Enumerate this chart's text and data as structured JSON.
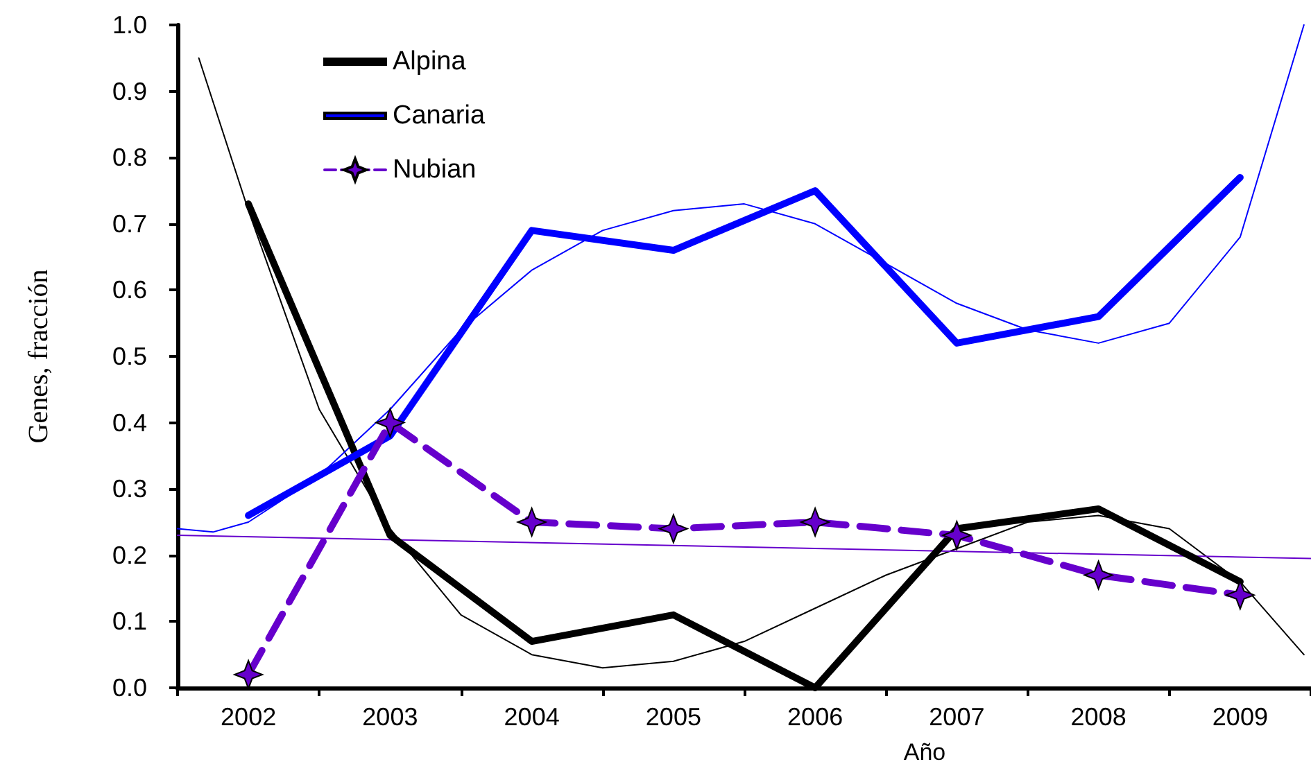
{
  "chart_data": {
    "type": "line",
    "xlabel": "Año",
    "ylabel": "Genes, fracción",
    "xlim": [
      2001.5,
      2009.5
    ],
    "xticks": [
      {
        "value": 2001.5,
        "label": null
      },
      {
        "value": 2002,
        "label": "2002"
      },
      {
        "value": 2002.5,
        "label": null
      },
      {
        "value": 2003,
        "label": "2003"
      },
      {
        "value": 2003.5,
        "label": null
      },
      {
        "value": 2004,
        "label": "2004"
      },
      {
        "value": 2004.5,
        "label": null
      },
      {
        "value": 2005,
        "label": "2005"
      },
      {
        "value": 2005.5,
        "label": null
      },
      {
        "value": 2006,
        "label": "2006"
      },
      {
        "value": 2006.5,
        "label": null
      },
      {
        "value": 2007,
        "label": "2007"
      },
      {
        "value": 2007.5,
        "label": null
      },
      {
        "value": 2008,
        "label": "2008"
      },
      {
        "value": 2008.5,
        "label": null
      },
      {
        "value": 2009,
        "label": "2009"
      },
      {
        "value": 2009.5,
        "label": null
      }
    ],
    "ylim": [
      0,
      1
    ],
    "yticks": [
      {
        "value": 0,
        "label": "0.0"
      },
      0.1,
      0.2,
      0.3,
      0.4,
      0.5,
      0.6,
      0.7,
      0.8,
      0.9,
      {
        "value": 1,
        "label": "1.0"
      }
    ],
    "grid": false,
    "legend": "top left",
    "series": [
      {
        "name": "Alpina",
        "color": "#000000",
        "x": [
          2002,
          2003,
          2004,
          2005,
          2006,
          2007,
          2008,
          2009
        ],
        "values": [
          0.73,
          0.23,
          0.07,
          0.11,
          0.0,
          0.24,
          0.27,
          0.16
        ],
        "marker": "none",
        "line_style": "solid"
      },
      {
        "name": "Canaria",
        "color": "#0000ff",
        "x": [
          2002,
          2003,
          2004,
          2005,
          2006,
          2007,
          2008,
          2009
        ],
        "values": [
          0.26,
          0.38,
          0.69,
          0.66,
          0.75,
          0.52,
          0.56,
          0.77
        ],
        "marker": "none",
        "line_style": "solid"
      },
      {
        "name": "Nubian",
        "color": "#6600cc",
        "x": [
          2002,
          2003,
          2004,
          2005,
          2006,
          2007,
          2008,
          2009
        ],
        "values": [
          0.02,
          0.4,
          0.25,
          0.24,
          0.25,
          0.23,
          0.17,
          0.14
        ],
        "marker": "star",
        "line_style": "dashed"
      },
      {
        "color": "#000000",
        "x": [
          2001.65,
          2002,
          2002.5,
          2003,
          2003.5,
          2004,
          2004.5,
          2005,
          2005.5,
          2006,
          2006.5,
          2007,
          2007.5,
          2008,
          2008.5,
          2009,
          2009.45
        ],
        "values": [
          0.95,
          0.72,
          0.42,
          0.24,
          0.11,
          0.05,
          0.03,
          0.04,
          0.07,
          0.12,
          0.17,
          0.21,
          0.25,
          0.26,
          0.24,
          0.16,
          0.05
        ],
        "marker": "none",
        "line_style": "solid"
      },
      {
        "color": "#0000ff",
        "x": [
          2001.5,
          2001.75,
          2002,
          2002.5,
          2003,
          2003.5,
          2004,
          2004.5,
          2005,
          2005.5,
          2006,
          2006.5,
          2007,
          2007.5,
          2008,
          2008.5,
          2009,
          2009.45
        ],
        "values": [
          0.24,
          0.235,
          0.25,
          0.32,
          0.42,
          0.54,
          0.63,
          0.69,
          0.72,
          0.73,
          0.7,
          0.64,
          0.58,
          0.54,
          0.52,
          0.55,
          0.68,
          1.0
        ],
        "marker": "none",
        "line_style": "solid"
      },
      {
        "color": "#6600cc",
        "x": [
          2001.5,
          2009.5
        ],
        "values": [
          0.23,
          0.195
        ],
        "marker": "none",
        "line_style": "solid"
      }
    ]
  }
}
